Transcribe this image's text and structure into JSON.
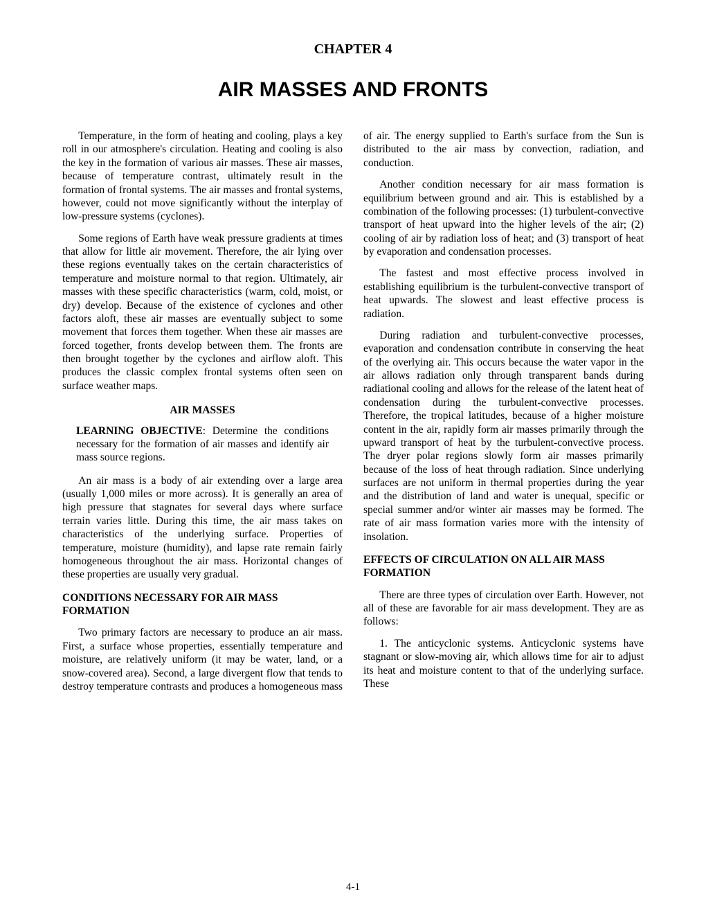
{
  "chapterLabel": "CHAPTER 4",
  "chapterTitle": "AIR MASSES AND FRONTS",
  "para1": "Temperature, in the form of heating and cooling, plays a key roll in our atmosphere's circulation. Heating and cooling is also the key in the formation of various air masses. These air masses, because of temperature contrast, ultimately result in the formation of frontal systems. The air masses and frontal systems, however, could not move significantly without the interplay of low-pressure systems (cyclones).",
  "para2": "Some regions of Earth have weak pressure gradients at times that allow for little air movement. Therefore, the air lying over these regions eventually takes on the certain characteristics of temperature and moisture normal to that region. Ultimately, air masses with these specific characteristics (warm, cold, moist, or dry) develop. Because of the existence of cyclones and other factors aloft, these air masses are eventually subject to some movement that forces them together. When these air masses are forced together, fronts develop between them. The fronts are then brought together by the cyclones and airflow aloft. This produces the classic complex frontal systems often seen on surface weather maps.",
  "sectionAirMasses": "AIR MASSES",
  "objectiveLead": "LEARNING OBJECTIVE",
  "objectiveText": ": Determine the conditions necessary for the formation of air masses and identify air mass source regions.",
  "para3": "An air mass is a body of air extending over a large area (usually 1,000 miles or more across). It is generally an area of high pressure that stagnates for several days where surface terrain varies little. During this time, the air mass takes on characteristics of the underlying surface. Properties of temperature, moisture (humidity), and lapse rate remain fairly homogeneous throughout the air mass. Horizontal changes of these properties are usually very gradual.",
  "headingConditions": "CONDITIONS NECESSARY FOR AIR MASS FORMATION",
  "para4": "Two primary factors are necessary to produce an air mass. First, a surface whose properties, essentially temperature and moisture, are relatively uniform (it may be water, land, or a snow-covered area). Second, a large divergent flow that tends to destroy temperature contrasts and produces a homogeneous mass of air. The energy supplied to Earth's surface from the Sun is distributed to the air mass by convection, radiation, and conduction.",
  "para5": "Another condition necessary for air mass formation is equilibrium between ground and air. This is established by a combination of the following processes: (1) turbulent-convective transport of heat upward into the higher levels of the air; (2) cooling of air by radiation loss of heat; and (3) transport of heat by evaporation and condensation processes.",
  "para6": "The fastest and most effective process involved in establishing equilibrium is the turbulent-convective transport of heat upwards. The slowest and least effective process is radiation.",
  "para7": "During radiation and turbulent-convective processes, evaporation and condensation contribute in conserving the heat of the overlying air. This occurs because the water vapor in the air allows radiation only through transparent bands during radiational cooling and allows for the release of the latent heat of condensation during the turbulent-convective processes. Therefore, the tropical latitudes, because of a higher moisture content in the air, rapidly form air masses primarily through the upward transport of heat by the turbulent-convective process. The dryer polar regions slowly form air masses primarily because of the loss of heat through radiation. Since underlying surfaces are not uniform in thermal properties during the year and the distribution of land and water is unequal, specific or special summer and/or winter air masses may be formed. The rate of air mass formation varies more with the intensity of insolation.",
  "headingEffects": "EFFECTS OF CIRCULATION ON ALL AIR MASS FORMATION",
  "para8": "There are three types of circulation over Earth. However, not all of these are favorable for air mass development. They are as follows:",
  "list1": "1. The anticyclonic systems. Anticyclonic systems have stagnant or slow-moving air, which allows time for air to adjust its heat and moisture content to that of the underlying surface. These",
  "pageNumber": "4-1"
}
